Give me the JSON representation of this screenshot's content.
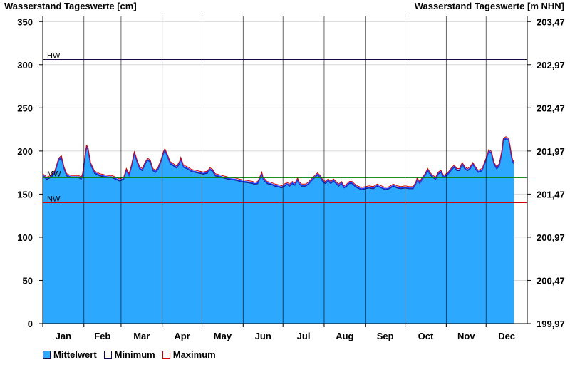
{
  "chart_data": {
    "type": "area",
    "ylabel_left": "Wasserstand Tageswerte [cm]",
    "ylabel_right": "Wasserstand Tageswerte [m NHN]",
    "ylim": [
      0,
      356
    ],
    "yticks_left": [
      0,
      50,
      100,
      150,
      200,
      250,
      300,
      350
    ],
    "yticks_right": [
      "199,97",
      "200,47",
      "200,97",
      "201,47",
      "201,97",
      "202,47",
      "202,97",
      "203,47"
    ],
    "months": [
      "Jan",
      "Feb",
      "Mar",
      "Apr",
      "May",
      "Jun",
      "Jul",
      "Aug",
      "Sep",
      "Oct",
      "Nov",
      "Dec"
    ],
    "x_unit": "day of year",
    "reference_lines": [
      {
        "label": "HW",
        "value": 306,
        "color": "#1a0a4a"
      },
      {
        "label": "MW",
        "value": 169,
        "color": "#008000"
      },
      {
        "label": "NW",
        "value": 140,
        "color": "#d00000"
      }
    ],
    "series": [
      {
        "name": "Mittelwert",
        "color": "#2ca8ff",
        "points": [
          [
            0,
            172
          ],
          [
            3,
            168
          ],
          [
            6,
            170
          ],
          [
            9,
            175
          ],
          [
            12,
            190
          ],
          [
            14,
            193
          ],
          [
            16,
            180
          ],
          [
            18,
            172
          ],
          [
            21,
            170
          ],
          [
            24,
            170
          ],
          [
            27,
            170
          ],
          [
            29,
            168
          ],
          [
            30,
            172
          ],
          [
            32,
            195
          ],
          [
            33,
            205
          ],
          [
            34,
            203
          ],
          [
            36,
            185
          ],
          [
            39,
            175
          ],
          [
            43,
            172
          ],
          [
            46,
            171
          ],
          [
            49,
            170
          ],
          [
            52,
            170
          ],
          [
            55,
            168
          ],
          [
            58,
            166
          ],
          [
            61,
            168
          ],
          [
            63,
            178
          ],
          [
            65,
            172
          ],
          [
            67,
            183
          ],
          [
            69,
            198
          ],
          [
            71,
            188
          ],
          [
            73,
            180
          ],
          [
            75,
            178
          ],
          [
            77,
            185
          ],
          [
            79,
            190
          ],
          [
            81,
            188
          ],
          [
            83,
            178
          ],
          [
            85,
            176
          ],
          [
            87,
            180
          ],
          [
            89,
            188
          ],
          [
            91,
            198
          ],
          [
            92,
            201
          ],
          [
            94,
            194
          ],
          [
            96,
            186
          ],
          [
            99,
            183
          ],
          [
            101,
            181
          ],
          [
            103,
            186
          ],
          [
            104,
            191
          ],
          [
            106,
            182
          ],
          [
            109,
            180
          ],
          [
            112,
            177
          ],
          [
            115,
            176
          ],
          [
            118,
            175
          ],
          [
            121,
            174
          ],
          [
            124,
            175
          ],
          [
            126,
            179
          ],
          [
            128,
            177
          ],
          [
            130,
            172
          ],
          [
            135,
            170
          ],
          [
            140,
            168
          ],
          [
            145,
            167
          ],
          [
            150,
            165
          ],
          [
            155,
            164
          ],
          [
            158,
            163
          ],
          [
            160,
            162
          ],
          [
            162,
            163
          ],
          [
            164,
            170
          ],
          [
            165,
            174
          ],
          [
            166,
            168
          ],
          [
            169,
            163
          ],
          [
            172,
            162
          ],
          [
            175,
            160
          ],
          [
            178,
            159
          ],
          [
            180,
            158
          ],
          [
            182,
            160
          ],
          [
            184,
            162
          ],
          [
            186,
            160
          ],
          [
            188,
            163
          ],
          [
            190,
            161
          ],
          [
            192,
            167
          ],
          [
            193,
            163
          ],
          [
            195,
            160
          ],
          [
            198,
            160
          ],
          [
            200,
            162
          ],
          [
            203,
            167
          ],
          [
            205,
            170
          ],
          [
            207,
            173
          ],
          [
            209,
            170
          ],
          [
            211,
            165
          ],
          [
            213,
            163
          ],
          [
            215,
            166
          ],
          [
            217,
            163
          ],
          [
            219,
            166
          ],
          [
            221,
            163
          ],
          [
            223,
            160
          ],
          [
            225,
            163
          ],
          [
            227,
            158
          ],
          [
            229,
            160
          ],
          [
            231,
            163
          ],
          [
            233,
            163
          ],
          [
            235,
            160
          ],
          [
            237,
            158
          ],
          [
            240,
            156
          ],
          [
            243,
            157
          ],
          [
            246,
            158
          ],
          [
            249,
            157
          ],
          [
            252,
            160
          ],
          [
            255,
            158
          ],
          [
            258,
            156
          ],
          [
            261,
            157
          ],
          [
            264,
            160
          ],
          [
            267,
            158
          ],
          [
            270,
            157
          ],
          [
            273,
            158
          ],
          [
            276,
            157
          ],
          [
            279,
            157
          ],
          [
            281,
            162
          ],
          [
            282,
            167
          ],
          [
            284,
            163
          ],
          [
            286,
            168
          ],
          [
            288,
            172
          ],
          [
            290,
            178
          ],
          [
            292,
            173
          ],
          [
            294,
            170
          ],
          [
            296,
            168
          ],
          [
            298,
            174
          ],
          [
            300,
            176
          ],
          [
            302,
            170
          ],
          [
            305,
            173
          ],
          [
            308,
            179
          ],
          [
            310,
            182
          ],
          [
            312,
            178
          ],
          [
            314,
            178
          ],
          [
            316,
            185
          ],
          [
            318,
            180
          ],
          [
            320,
            178
          ],
          [
            322,
            180
          ],
          [
            324,
            185
          ],
          [
            326,
            180
          ],
          [
            328,
            176
          ],
          [
            331,
            178
          ],
          [
            334,
            190
          ],
          [
            336,
            200
          ],
          [
            338,
            198
          ],
          [
            340,
            185
          ],
          [
            342,
            180
          ],
          [
            344,
            184
          ],
          [
            346,
            200
          ],
          [
            347,
            213
          ],
          [
            349,
            215
          ],
          [
            351,
            213
          ],
          [
            352,
            205
          ],
          [
            353,
            195
          ],
          [
            354,
            188
          ],
          [
            355,
            186
          ]
        ]
      },
      {
        "name": "Minimum",
        "color": "#1a0a4a"
      },
      {
        "name": "Maximum",
        "color": "#d00000"
      }
    ]
  }
}
